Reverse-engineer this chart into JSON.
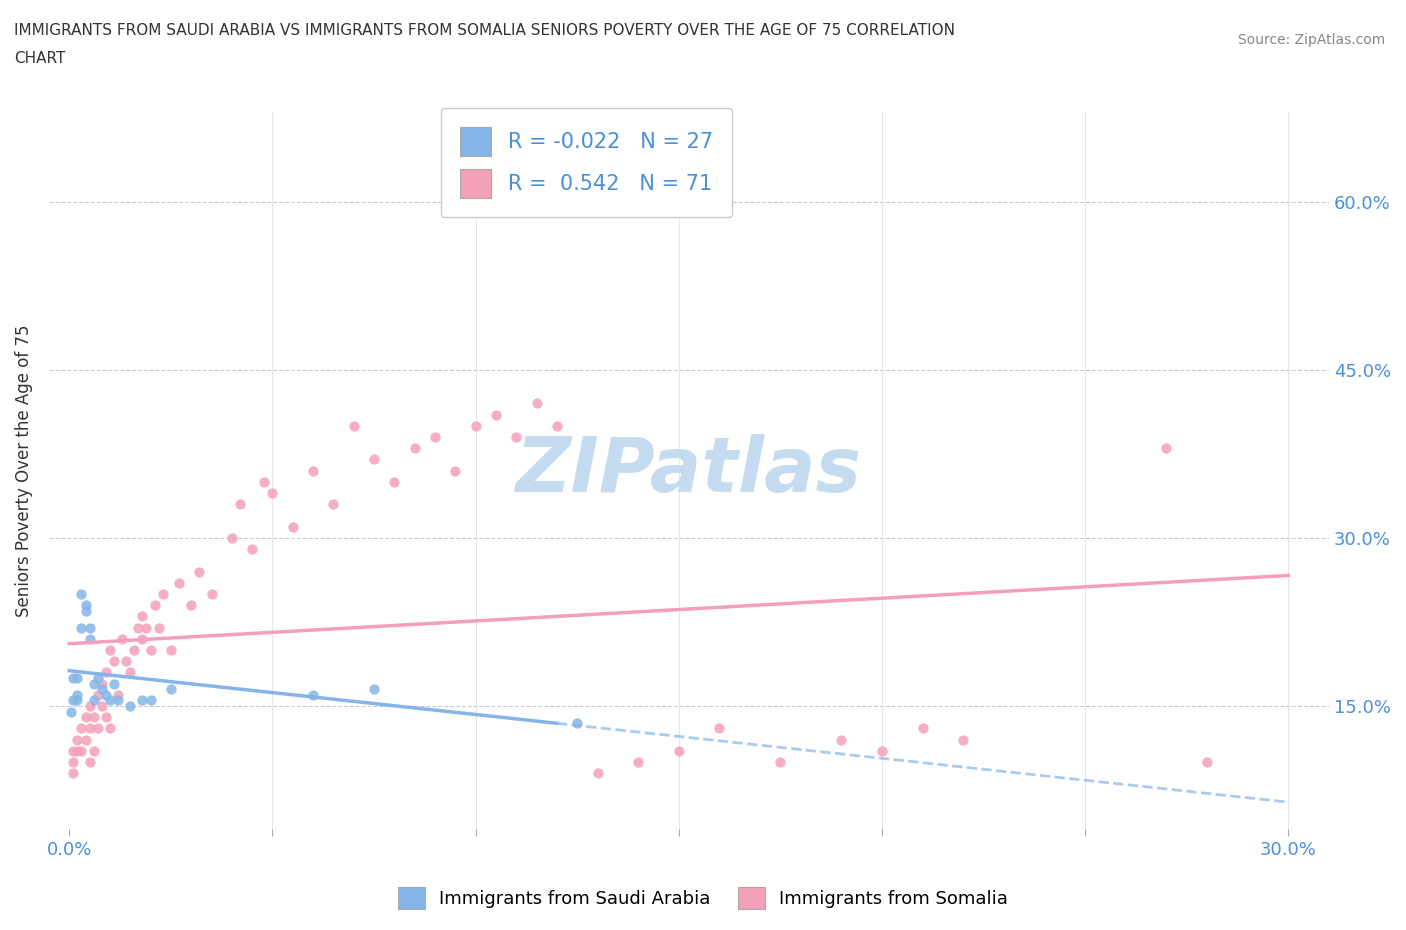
{
  "title_line1": "IMMIGRANTS FROM SAUDI ARABIA VS IMMIGRANTS FROM SOMALIA SENIORS POVERTY OVER THE AGE OF 75 CORRELATION",
  "title_line2": "CHART",
  "source": "Source: ZipAtlas.com",
  "ylabel": "Seniors Poverty Over the Age of 75",
  "xlim": [
    -0.005,
    0.31
  ],
  "ylim": [
    0.04,
    0.68
  ],
  "xtick_vals": [
    0.0,
    0.05,
    0.1,
    0.15,
    0.2,
    0.25,
    0.3
  ],
  "xtick_labels": [
    "0.0%",
    "",
    "",
    "",
    "",
    "",
    "30.0%"
  ],
  "ytick_vals": [
    0.15,
    0.3,
    0.45,
    0.6
  ],
  "ytick_labels": [
    "15.0%",
    "30.0%",
    "45.0%",
    "60.0%"
  ],
  "saudi_color": "#85b5e8",
  "somalia_color": "#f4a0b8",
  "saudi_R": -0.022,
  "saudi_N": 27,
  "somalia_R": 0.542,
  "somalia_N": 71,
  "watermark": "ZIPatlas",
  "watermark_color": "#c5dcf0",
  "legend_label1": "Immigrants from Saudi Arabia",
  "legend_label2": "Immigrants from Somalia",
  "saudi_scatter_x": [
    0.0005,
    0.001,
    0.001,
    0.002,
    0.002,
    0.002,
    0.003,
    0.003,
    0.004,
    0.004,
    0.005,
    0.005,
    0.006,
    0.006,
    0.007,
    0.008,
    0.009,
    0.01,
    0.011,
    0.012,
    0.015,
    0.018,
    0.02,
    0.025,
    0.06,
    0.075,
    0.125
  ],
  "saudi_scatter_y": [
    0.145,
    0.155,
    0.175,
    0.155,
    0.16,
    0.175,
    0.22,
    0.25,
    0.24,
    0.235,
    0.21,
    0.22,
    0.155,
    0.17,
    0.175,
    0.165,
    0.16,
    0.155,
    0.17,
    0.155,
    0.15,
    0.155,
    0.155,
    0.165,
    0.16,
    0.165,
    0.135
  ],
  "somalia_scatter_x": [
    0.001,
    0.001,
    0.001,
    0.002,
    0.002,
    0.003,
    0.003,
    0.004,
    0.004,
    0.005,
    0.005,
    0.005,
    0.006,
    0.006,
    0.007,
    0.007,
    0.008,
    0.008,
    0.009,
    0.009,
    0.01,
    0.01,
    0.011,
    0.012,
    0.013,
    0.014,
    0.015,
    0.016,
    0.017,
    0.018,
    0.018,
    0.019,
    0.02,
    0.021,
    0.022,
    0.023,
    0.025,
    0.027,
    0.03,
    0.032,
    0.035,
    0.04,
    0.042,
    0.045,
    0.048,
    0.05,
    0.055,
    0.06,
    0.065,
    0.07,
    0.075,
    0.08,
    0.085,
    0.09,
    0.095,
    0.1,
    0.105,
    0.11,
    0.115,
    0.12,
    0.13,
    0.14,
    0.15,
    0.16,
    0.175,
    0.19,
    0.2,
    0.21,
    0.22,
    0.27,
    0.28
  ],
  "somalia_scatter_y": [
    0.1,
    0.11,
    0.09,
    0.11,
    0.12,
    0.11,
    0.13,
    0.12,
    0.14,
    0.1,
    0.13,
    0.15,
    0.11,
    0.14,
    0.13,
    0.16,
    0.15,
    0.17,
    0.14,
    0.18,
    0.13,
    0.2,
    0.19,
    0.16,
    0.21,
    0.19,
    0.18,
    0.2,
    0.22,
    0.21,
    0.23,
    0.22,
    0.2,
    0.24,
    0.22,
    0.25,
    0.2,
    0.26,
    0.24,
    0.27,
    0.25,
    0.3,
    0.33,
    0.29,
    0.35,
    0.34,
    0.31,
    0.36,
    0.33,
    0.4,
    0.37,
    0.35,
    0.38,
    0.39,
    0.36,
    0.4,
    0.41,
    0.39,
    0.42,
    0.4,
    0.09,
    0.1,
    0.11,
    0.13,
    0.1,
    0.12,
    0.11,
    0.13,
    0.12,
    0.38,
    0.1
  ]
}
